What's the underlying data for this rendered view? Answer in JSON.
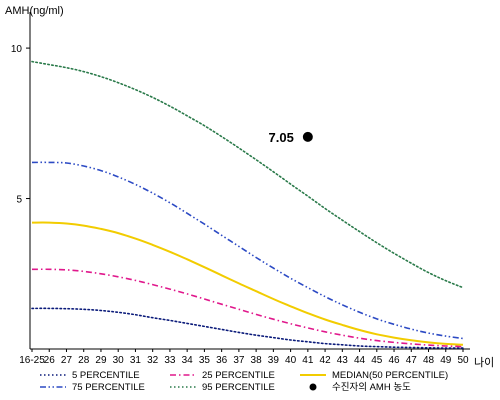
{
  "chart_data": {
    "type": "line",
    "ylabel": "AMH(ng/ml)",
    "xlabel": "나이",
    "x_categories": [
      "16-25",
      "26",
      "27",
      "28",
      "29",
      "30",
      "31",
      "32",
      "33",
      "34",
      "35",
      "36",
      "37",
      "38",
      "39",
      "40",
      "41",
      "42",
      "43",
      "44",
      "45",
      "46",
      "47",
      "48",
      "49",
      "50"
    ],
    "y_ticks": [
      5,
      10
    ],
    "ylim": [
      0,
      11
    ],
    "series": [
      {
        "name": "5 PERCENTILE",
        "color": "#0a1a7a",
        "dash": "dot",
        "values": [
          1.35,
          1.35,
          1.34,
          1.32,
          1.28,
          1.22,
          1.14,
          1.04,
          0.95,
          0.85,
          0.75,
          0.65,
          0.55,
          0.46,
          0.38,
          0.3,
          0.24,
          0.18,
          0.14,
          0.1,
          0.08,
          0.06,
          0.05,
          0.04,
          0.03,
          0.03
        ]
      },
      {
        "name": "25 PERCENTILE",
        "color": "#e0188c",
        "dash": "dashdot",
        "values": [
          2.65,
          2.65,
          2.63,
          2.58,
          2.5,
          2.4,
          2.28,
          2.14,
          1.99,
          1.83,
          1.66,
          1.49,
          1.32,
          1.15,
          0.99,
          0.84,
          0.7,
          0.57,
          0.46,
          0.36,
          0.28,
          0.22,
          0.17,
          0.13,
          0.1,
          0.08
        ]
      },
      {
        "name": "MEDIAN(50 PERCENTILE)",
        "color": "#f2cc00",
        "dash": "solid",
        "values": [
          4.2,
          4.2,
          4.17,
          4.1,
          3.99,
          3.85,
          3.67,
          3.46,
          3.23,
          2.98,
          2.72,
          2.45,
          2.18,
          1.92,
          1.66,
          1.42,
          1.19,
          0.98,
          0.8,
          0.63,
          0.49,
          0.38,
          0.29,
          0.22,
          0.17,
          0.14
        ]
      },
      {
        "name": "75 PERCENTILE",
        "color": "#2c4ac4",
        "dash": "dashdotdot",
        "values": [
          6.2,
          6.2,
          6.18,
          6.08,
          5.93,
          5.72,
          5.47,
          5.18,
          4.86,
          4.51,
          4.15,
          3.78,
          3.41,
          3.04,
          2.69,
          2.35,
          2.04,
          1.74,
          1.47,
          1.22,
          1.0,
          0.82,
          0.66,
          0.53,
          0.43,
          0.35
        ]
      },
      {
        "name": "95 PERCENTILE",
        "color": "#2a7a4a",
        "dash": "dot",
        "values": [
          9.55,
          9.45,
          9.35,
          9.22,
          9.05,
          8.85,
          8.62,
          8.36,
          8.07,
          7.75,
          7.42,
          7.06,
          6.68,
          6.29,
          5.89,
          5.48,
          5.08,
          4.67,
          4.28,
          3.9,
          3.53,
          3.18,
          2.85,
          2.54,
          2.27,
          2.04
        ]
      }
    ],
    "point": {
      "label": "수진자의 AMH 농도",
      "x": "41",
      "y": 7.05,
      "annotation": "7.05"
    }
  }
}
